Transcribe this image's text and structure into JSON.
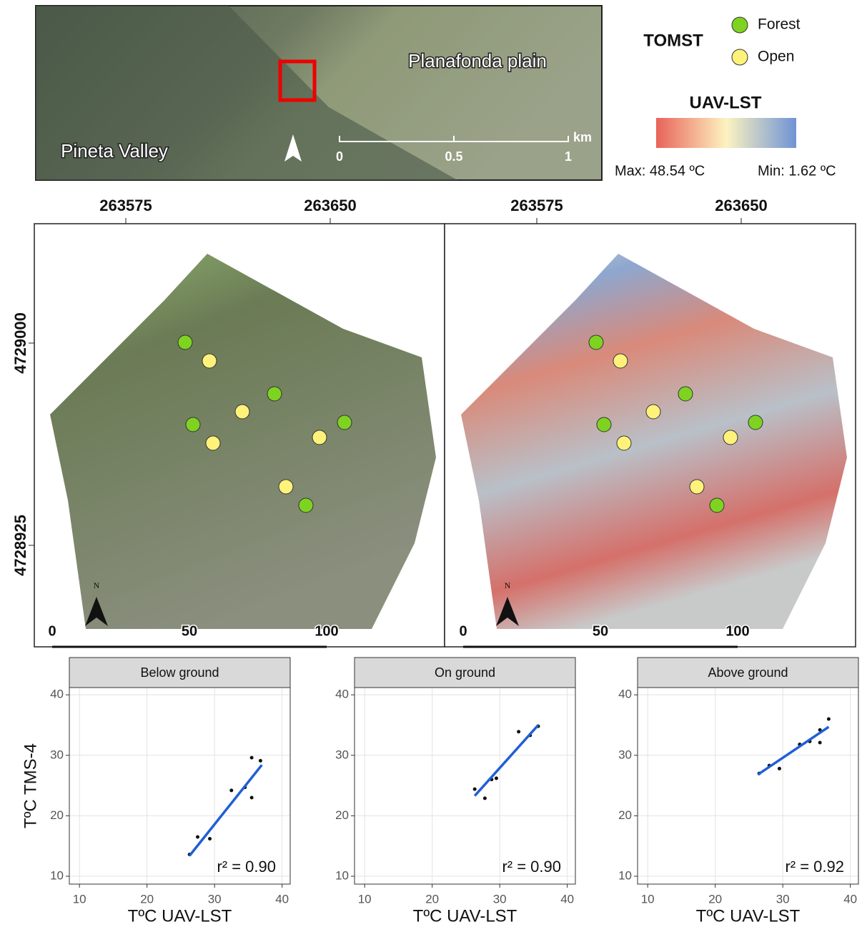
{
  "inset_map": {
    "labels": [
      "Planafonda plain",
      "Pineta Valley"
    ],
    "scale_unit": "km",
    "scale_ticks": [
      "0",
      "0.5",
      "1"
    ]
  },
  "legend": {
    "title": "TOMST",
    "items": [
      {
        "name": "Forest",
        "color": "#7ed321"
      },
      {
        "name": "Open",
        "color": "#fff27a"
      }
    ],
    "lst_title": "UAV-LST",
    "lst_colors": [
      "#e8635a",
      "#fdf3c0",
      "#6f93d6"
    ],
    "max": "Max: 48.54 ºC",
    "min": "Min: 1.62 ºC"
  },
  "maps": {
    "x_ticks": [
      "263575",
      "263650"
    ],
    "y_ticks": [
      "4729000",
      "4728925"
    ],
    "north": "N",
    "scale_ticks": [
      "0",
      "50",
      "100"
    ]
  },
  "chart_data": [
    {
      "type": "scatter",
      "title": "Below ground",
      "xlabel": "TºC UAV-LST",
      "ylabel": "TºC TMS-4",
      "xlim": [
        8.5,
        41.2
      ],
      "ylim": [
        8.7,
        41.2
      ],
      "xticks": [
        10,
        20,
        30,
        40
      ],
      "yticks": [
        10,
        20,
        30,
        40
      ],
      "grid": true,
      "color": "#111111",
      "x": [
        26.3,
        27.5,
        29.3,
        32.5,
        34.5,
        35.5,
        35.5,
        36.8
      ],
      "values": [
        13.6,
        16.5,
        16.2,
        24.2,
        24.7,
        29.6,
        23.0,
        29.1
      ],
      "fit": {
        "color": "#1f5fd6",
        "x": [
          26.3,
          37.0
        ],
        "y": [
          13.4,
          28.4
        ]
      },
      "annotation": "r² = 0.90"
    },
    {
      "type": "scatter",
      "title": "On ground",
      "xlabel": "TºC UAV-LST",
      "xlim": [
        8.5,
        41.2
      ],
      "ylim": [
        8.7,
        41.2
      ],
      "xticks": [
        10,
        20,
        30,
        40
      ],
      "yticks": [
        10,
        20,
        30,
        40
      ],
      "grid": true,
      "color": "#111111",
      "x": [
        26.3,
        27.8,
        28.8,
        29.5,
        32.8,
        34.5,
        35.7
      ],
      "values": [
        24.4,
        22.9,
        26.0,
        26.2,
        33.9,
        33.3,
        34.8
      ],
      "fit": {
        "color": "#1f5fd6",
        "x": [
          26.3,
          35.7
        ],
        "y": [
          23.3,
          35.0
        ]
      },
      "annotation": "r² = 0.90"
    },
    {
      "type": "scatter",
      "title": "Above ground",
      "xlabel": "TºC UAV-LST",
      "xlim": [
        8.5,
        41.2
      ],
      "ylim": [
        8.7,
        41.2
      ],
      "xticks": [
        10,
        20,
        30,
        40
      ],
      "yticks": [
        10,
        20,
        30,
        40
      ],
      "grid": true,
      "color": "#111111",
      "x": [
        26.5,
        28.0,
        29.5,
        32.5,
        34.0,
        35.5,
        35.5,
        36.8
      ],
      "values": [
        27.0,
        28.3,
        27.8,
        31.8,
        32.3,
        32.1,
        34.2,
        36.0
      ],
      "fit": {
        "color": "#1f5fd6",
        "x": [
          26.3,
          36.8
        ],
        "y": [
          26.8,
          34.7
        ]
      },
      "annotation": "r² = 0.92"
    }
  ]
}
